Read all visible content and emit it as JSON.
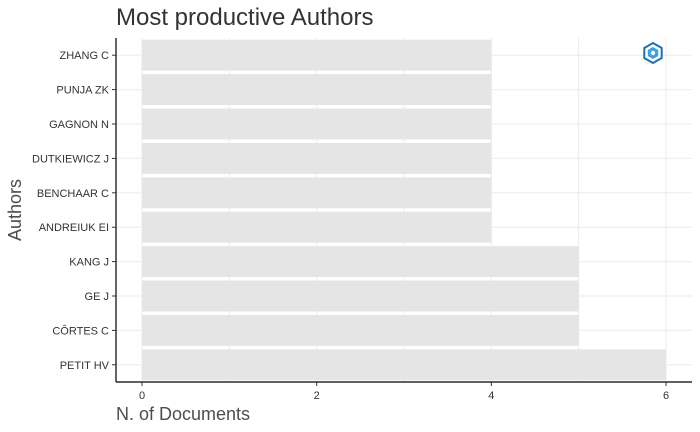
{
  "chart_data": {
    "type": "bar",
    "orientation": "horizontal",
    "title": "Most productive Authors",
    "xlabel": "N. of Documents",
    "ylabel": "Authors",
    "categories": [
      "ZHANG C",
      "PUNJA ZK",
      "GAGNON N",
      "DUTKIEWICZ J",
      "BENCHAAR C",
      "ANDREIUK EI",
      "KANG J",
      "GE J",
      "CÔRTES C",
      "PETIT HV"
    ],
    "values": [
      4,
      4,
      4,
      4,
      4,
      4,
      5,
      5,
      5,
      6
    ],
    "xlim": [
      0,
      6
    ],
    "xticks": [
      0,
      2,
      4,
      6
    ],
    "grid": true,
    "bar_color": "#e5e5e5",
    "logo_icon": "bibliometrix-logo-icon"
  }
}
